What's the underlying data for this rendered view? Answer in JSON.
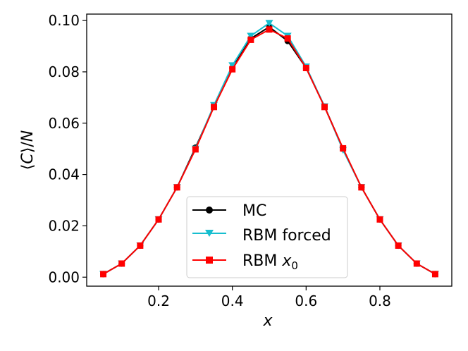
{
  "chart_data": {
    "type": "line",
    "xlabel": "x",
    "ylabel": "⟨C⟩/N",
    "xlim": [
      0.005,
      0.995
    ],
    "ylim": [
      -0.0035,
      0.1025
    ],
    "xticks": [
      0.2,
      0.4,
      0.6,
      0.8
    ],
    "xtick_labels": [
      "0.2",
      "0.4",
      "0.6",
      "0.8"
    ],
    "yticks": [
      0.0,
      0.02,
      0.04,
      0.06,
      0.08,
      0.1
    ],
    "ytick_labels": [
      "0.00",
      "0.02",
      "0.04",
      "0.06",
      "0.08",
      "0.10"
    ],
    "grid": false,
    "legend_position": "lower-center",
    "x": [
      0.05,
      0.1,
      0.15,
      0.2,
      0.25,
      0.3,
      0.35,
      0.4,
      0.45,
      0.5,
      0.55,
      0.6,
      0.65,
      0.7,
      0.75,
      0.8,
      0.85,
      0.9,
      0.95
    ],
    "series": [
      {
        "name": "MC",
        "color": "#000000",
        "marker": "circle",
        "values": [
          0.0012,
          0.0053,
          0.0123,
          0.0225,
          0.035,
          0.0505,
          0.0665,
          0.0815,
          0.093,
          0.0975,
          0.092,
          0.0815,
          0.0665,
          0.05,
          0.035,
          0.0225,
          0.0123,
          0.0053,
          0.0012
        ]
      },
      {
        "name": "RBM forced",
        "color": "#17becf",
        "marker": "triangle-down",
        "values": [
          0.0012,
          0.0053,
          0.0123,
          0.0225,
          0.035,
          0.05,
          0.067,
          0.0825,
          0.094,
          0.099,
          0.094,
          0.082,
          0.0665,
          0.0495,
          0.035,
          0.0225,
          0.0123,
          0.0053,
          0.0012
        ]
      },
      {
        "name": "RBM x0",
        "color": "#ff0000",
        "marker": "square",
        "values": [
          0.0012,
          0.0053,
          0.0123,
          0.0225,
          0.035,
          0.0498,
          0.0663,
          0.081,
          0.0925,
          0.0965,
          0.093,
          0.0815,
          0.0663,
          0.0502,
          0.035,
          0.0225,
          0.0123,
          0.0053,
          0.0012
        ]
      }
    ]
  },
  "legend": {
    "mc_label": "MC",
    "rbm_forced_label": "RBM forced",
    "rbm_x0_label_main": "RBM ",
    "rbm_x0_label_var": "x",
    "rbm_x0_label_sub": "0"
  },
  "axes": {
    "xlabel": "x",
    "ylabel_left": "⟨",
    "ylabel_var": "C",
    "ylabel_right": "⟩/",
    "ylabel_n": "N"
  }
}
